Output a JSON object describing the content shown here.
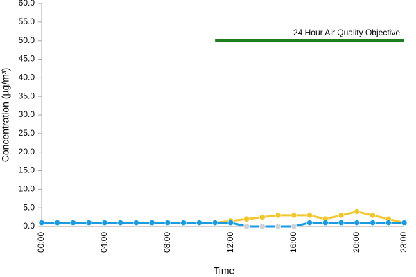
{
  "chart_data": {
    "type": "line",
    "x_label": "Time",
    "y_label": "Concentration (µg/m³)",
    "categories": [
      "00:00",
      null,
      null,
      null,
      "04:00",
      null,
      null,
      null,
      "08:00",
      null,
      null,
      null,
      "12:00",
      null,
      null,
      null,
      "16:00",
      null,
      null,
      null,
      "20:00",
      null,
      null,
      "23:00"
    ],
    "ylim": [
      0,
      60
    ],
    "yticks": [
      {
        "value": 0,
        "label": "0.0"
      },
      {
        "value": 5,
        "label": "5.0"
      },
      {
        "value": 10,
        "label": "10.0"
      },
      {
        "value": 15,
        "label": "15.0"
      },
      {
        "value": 20,
        "label": "20.0"
      },
      {
        "value": 25,
        "label": "25.0"
      },
      {
        "value": 30,
        "label": "30.0"
      },
      {
        "value": 35,
        "label": "35.0"
      },
      {
        "value": 40,
        "label": "40.0"
      },
      {
        "value": 45,
        "label": "45.0"
      },
      {
        "value": 50,
        "label": "50.0"
      },
      {
        "value": 55,
        "label": "55.0"
      },
      {
        "value": 60,
        "label": "60.0"
      }
    ],
    "grid": false,
    "series": [
      {
        "color": "#f2c72e",
        "markers": true,
        "line": true,
        "values": [
          null,
          null,
          null,
          null,
          null,
          null,
          null,
          null,
          null,
          null,
          null,
          1.0,
          1.5,
          2.0,
          2.5,
          3.0,
          3.0,
          3.0,
          2.0,
          3.0,
          4.0,
          3.0,
          2.0,
          1.0
        ]
      },
      {
        "color": "#1a9be0",
        "markers": true,
        "line": true,
        "values": [
          1.0,
          1.0,
          1.0,
          1.0,
          1.0,
          1.0,
          1.0,
          1.0,
          1.0,
          1.0,
          1.0,
          1.0,
          1.0,
          0.0,
          0.0,
          0.0,
          0.0,
          1.0,
          1.0,
          1.0,
          1.0,
          1.0,
          1.0,
          1.0
        ]
      },
      {
        "color": "#cfd3d8",
        "markers": true,
        "line": false,
        "values": [
          null,
          null,
          null,
          null,
          null,
          null,
          null,
          null,
          null,
          null,
          null,
          null,
          null,
          0.0,
          0.0,
          0.0,
          0.0,
          null,
          null,
          null,
          null,
          null,
          null,
          null
        ]
      },
      {
        "color": "#1e7d1e",
        "markers": false,
        "line": true,
        "label": "24 Hour Air Quality Objective",
        "values": [
          null,
          null,
          null,
          null,
          null,
          null,
          null,
          null,
          null,
          null,
          null,
          50,
          50,
          50,
          50,
          50,
          50,
          50,
          50,
          50,
          50,
          50,
          50,
          50
        ]
      }
    ]
  }
}
